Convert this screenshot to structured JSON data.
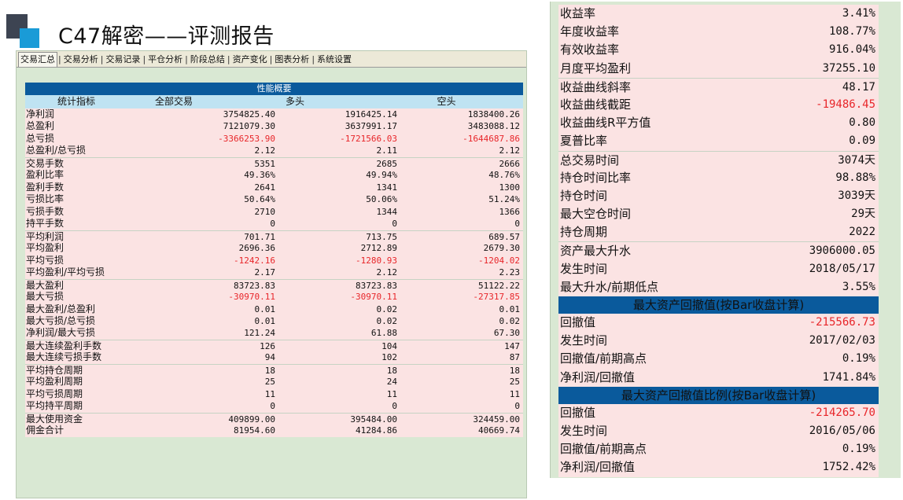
{
  "slide": {
    "title": "C47解密——评测报告"
  },
  "tabs": [
    "交易汇总",
    "交易分析",
    "交易记录",
    "平仓分析",
    "阶段总结",
    "资产变化",
    "图表分析",
    "系统设置"
  ],
  "performance": {
    "section_title": "性能概要",
    "columns": [
      "统计指标",
      "全部交易",
      "多头",
      "空头"
    ],
    "rows": [
      {
        "label": "净利润",
        "all": "3754825.40",
        "long": "1916425.14",
        "short": "1838400.26",
        "neg": false,
        "sep": false
      },
      {
        "label": "总盈利",
        "all": "7121079.30",
        "long": "3637991.17",
        "short": "3483088.12",
        "neg": false,
        "sep": false
      },
      {
        "label": "总亏损",
        "all": "-3366253.90",
        "long": "-1721566.03",
        "short": "-1644687.86",
        "neg": true,
        "sep": false
      },
      {
        "label": "总盈利/总亏损",
        "all": "2.12",
        "long": "2.11",
        "short": "2.12",
        "neg": false,
        "sep": false
      },
      {
        "label": "交易手数",
        "all": "5351",
        "long": "2685",
        "short": "2666",
        "neg": false,
        "sep": true
      },
      {
        "label": "盈利比率",
        "all": "49.36%",
        "long": "49.94%",
        "short": "48.76%",
        "neg": false,
        "sep": false
      },
      {
        "label": "盈利手数",
        "all": "2641",
        "long": "1341",
        "short": "1300",
        "neg": false,
        "sep": false
      },
      {
        "label": "亏损比率",
        "all": "50.64%",
        "long": "50.06%",
        "short": "51.24%",
        "neg": false,
        "sep": false
      },
      {
        "label": "亏损手数",
        "all": "2710",
        "long": "1344",
        "short": "1366",
        "neg": false,
        "sep": false
      },
      {
        "label": "持平手数",
        "all": "0",
        "long": "0",
        "short": "0",
        "neg": false,
        "sep": false
      },
      {
        "label": "平均利润",
        "all": "701.71",
        "long": "713.75",
        "short": "689.57",
        "neg": false,
        "sep": true
      },
      {
        "label": "平均盈利",
        "all": "2696.36",
        "long": "2712.89",
        "short": "2679.30",
        "neg": false,
        "sep": false
      },
      {
        "label": "平均亏损",
        "all": "-1242.16",
        "long": "-1280.93",
        "short": "-1204.02",
        "neg": true,
        "sep": false
      },
      {
        "label": "平均盈利/平均亏损",
        "all": "2.17",
        "long": "2.12",
        "short": "2.23",
        "neg": false,
        "sep": false
      },
      {
        "label": "最大盈利",
        "all": "83723.83",
        "long": "83723.83",
        "short": "51122.22",
        "neg": false,
        "sep": true
      },
      {
        "label": "最大亏损",
        "all": "-30970.11",
        "long": "-30970.11",
        "short": "-27317.85",
        "neg": true,
        "sep": false
      },
      {
        "label": "最大盈利/总盈利",
        "all": "0.01",
        "long": "0.02",
        "short": "0.01",
        "neg": false,
        "sep": false
      },
      {
        "label": "最大亏损/总亏损",
        "all": "0.01",
        "long": "0.02",
        "short": "0.02",
        "neg": false,
        "sep": false
      },
      {
        "label": "净利润/最大亏损",
        "all": "121.24",
        "long": "61.88",
        "short": "67.30",
        "neg": false,
        "sep": false
      },
      {
        "label": "最大连续盈利手数",
        "all": "126",
        "long": "104",
        "short": "147",
        "neg": false,
        "sep": true
      },
      {
        "label": "最大连续亏损手数",
        "all": "94",
        "long": "102",
        "short": "87",
        "neg": false,
        "sep": false
      },
      {
        "label": "平均持仓周期",
        "all": "18",
        "long": "18",
        "short": "18",
        "neg": false,
        "sep": true
      },
      {
        "label": "平均盈利周期",
        "all": "25",
        "long": "24",
        "short": "25",
        "neg": false,
        "sep": false
      },
      {
        "label": "平均亏损周期",
        "all": "11",
        "long": "11",
        "short": "11",
        "neg": false,
        "sep": false
      },
      {
        "label": "平均持平周期",
        "all": "0",
        "long": "0",
        "short": "0",
        "neg": false,
        "sep": false
      },
      {
        "label": "最大使用资金",
        "all": "409899.00",
        "long": "395484.00",
        "short": "324459.00",
        "neg": false,
        "sep": true
      },
      {
        "label": "佣金合计",
        "all": "81954.60",
        "long": "41284.86",
        "short": "40669.74",
        "neg": false,
        "sep": false
      }
    ]
  },
  "summary": {
    "rows_top": [
      {
        "label": "收益率",
        "value": "3.41%",
        "neg": false,
        "sep": false
      },
      {
        "label": "年度收益率",
        "value": "108.77%",
        "neg": false,
        "sep": false
      },
      {
        "label": "有效收益率",
        "value": "916.04%",
        "neg": false,
        "sep": false
      },
      {
        "label": "月度平均盈利",
        "value": "37255.10",
        "neg": false,
        "sep": false
      },
      {
        "label": "收益曲线斜率",
        "value": "48.17",
        "neg": false,
        "sep": true
      },
      {
        "label": "收益曲线截距",
        "value": "-19486.45",
        "neg": true,
        "sep": false
      },
      {
        "label": "收益曲线R平方值",
        "value": "0.80",
        "neg": false,
        "sep": false
      },
      {
        "label": "夏普比率",
        "value": "0.09",
        "neg": false,
        "sep": false
      },
      {
        "label": "总交易时间",
        "value": "3074天",
        "neg": false,
        "sep": true
      },
      {
        "label": "持仓时间比率",
        "value": "98.88%",
        "neg": false,
        "sep": false
      },
      {
        "label": "持仓时间",
        "value": "3039天",
        "neg": false,
        "sep": false
      },
      {
        "label": "最大空仓时间",
        "value": "29天",
        "neg": false,
        "sep": false
      },
      {
        "label": "持仓周期",
        "value": "2022",
        "neg": false,
        "sep": false
      },
      {
        "label": "资产最大升水",
        "value": "3906000.05",
        "neg": false,
        "sep": true
      },
      {
        "label": "发生时间",
        "value": "2018/05/17",
        "neg": false,
        "sep": false
      },
      {
        "label": "最大升水/前期低点",
        "value": "3.55%",
        "neg": false,
        "sep": false
      }
    ],
    "drawdown_title": "最大资产回撤值(按Bar收盘计算)",
    "drawdown_rows": [
      {
        "label": "回撤值",
        "value": "-215566.73",
        "neg": true,
        "sep": false
      },
      {
        "label": "发生时间",
        "value": "2017/02/03",
        "neg": false,
        "sep": false
      },
      {
        "label": "回撤值/前期高点",
        "value": "0.19%",
        "neg": false,
        "sep": false
      },
      {
        "label": "净利润/回撤值",
        "value": "1741.84%",
        "neg": false,
        "sep": false
      }
    ],
    "drawdown_ratio_title": "最大资产回撤值比例(按Bar收盘计算)",
    "drawdown_ratio_rows": [
      {
        "label": "回撤值",
        "value": "-214265.70",
        "neg": true,
        "sep": false
      },
      {
        "label": "发生时间",
        "value": "2016/05/06",
        "neg": false,
        "sep": false
      },
      {
        "label": "回撤值/前期高点",
        "value": "0.19%",
        "neg": false,
        "sep": false
      },
      {
        "label": "净利润/回撤值",
        "value": "1752.42%",
        "neg": false,
        "sep": false
      }
    ]
  }
}
